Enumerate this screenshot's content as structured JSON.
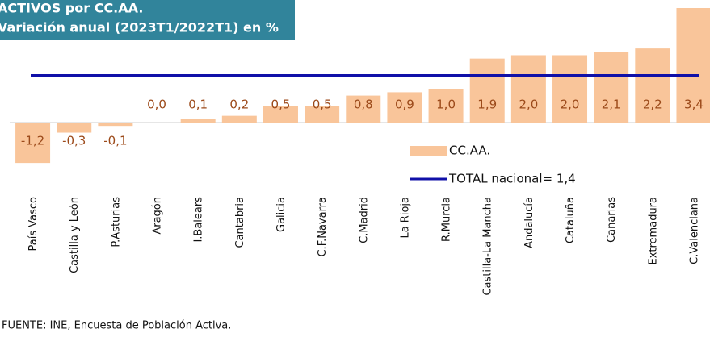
{
  "chart_data": {
    "type": "bar",
    "title": [
      "ACTIVOS por CC.AA.",
      "Variación anual (2023T1/2022T1) en %"
    ],
    "note": "FUENTE: INE, Encuesta de Población Activa.",
    "categories": [
      "País Vasco",
      "Castilla y León",
      "P.Asturias",
      "Aragón",
      "I.Balears",
      "Cantabria",
      "Galicia",
      "C.F.Navarra",
      "C.Madrid",
      "La Rioja",
      "R.Murcia",
      "Castilla-La Mancha",
      "Andalucía",
      "Cataluña",
      "Canarias",
      "Extremadura",
      "C.Valenciana"
    ],
    "series": [
      {
        "name": "CC.AA.",
        "color": "#f9c59a",
        "values": [
          -1.2,
          -0.3,
          -0.1,
          0.0,
          0.1,
          0.2,
          0.5,
          0.5,
          0.8,
          0.9,
          1.0,
          1.9,
          2.0,
          2.0,
          2.1,
          2.2,
          3.4
        ],
        "value_labels": [
          "-1,2",
          "-0,3",
          "-0,1",
          "0,0",
          "0,1",
          "0,2",
          "0,5",
          "0,5",
          "0,8",
          "0,9",
          "1,0",
          "1,9",
          "2,0",
          "2,0",
          "2,1",
          "2,2",
          "3,4"
        ]
      }
    ],
    "reference_line": {
      "name": "TOTAL nacional= 1,4",
      "value": 1.4,
      "color": "#1010a8"
    },
    "ylim": [
      -3.4,
      3.4
    ]
  }
}
